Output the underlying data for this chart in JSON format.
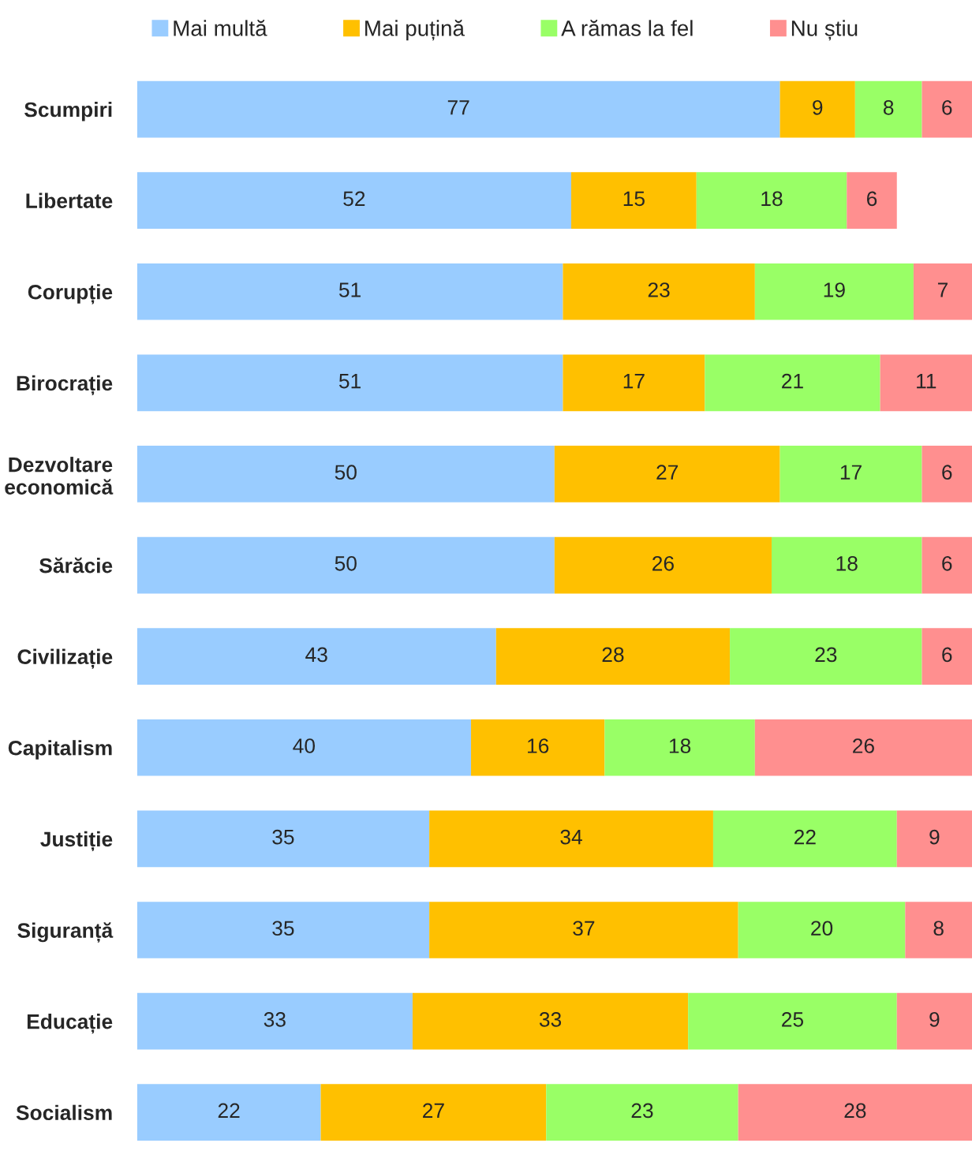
{
  "chart_data": {
    "type": "bar",
    "orientation": "horizontal",
    "stacked": true,
    "data_labels": true,
    "grid": false,
    "legend": "top",
    "tick_labels": "y",
    "categories": [
      "Scumpiri",
      "Libertate",
      "Corupție",
      "Birocrație",
      "Dezvoltare\neconomică",
      "Sărăcie",
      "Civilizație",
      "Capitalism",
      "Justiție",
      "Siguranță",
      "Educație",
      "Socialism"
    ],
    "series": [
      {
        "name": "Mai multă",
        "color": "#99ccff",
        "values": [
          77,
          52,
          51,
          51,
          50,
          50,
          43,
          40,
          35,
          35,
          33,
          22
        ]
      },
      {
        "name": "Mai puțină",
        "color": "#ffc000",
        "values": [
          9,
          15,
          23,
          17,
          27,
          26,
          28,
          16,
          34,
          37,
          33,
          27
        ]
      },
      {
        "name": "A rămas la fel",
        "color": "#99ff66",
        "values": [
          8,
          18,
          19,
          21,
          17,
          18,
          23,
          18,
          22,
          20,
          25,
          23
        ]
      },
      {
        "name": "Nu știu",
        "color": "#ff8f8f",
        "values": [
          6,
          6,
          7,
          11,
          6,
          6,
          6,
          26,
          9,
          8,
          9,
          28
        ]
      }
    ]
  }
}
